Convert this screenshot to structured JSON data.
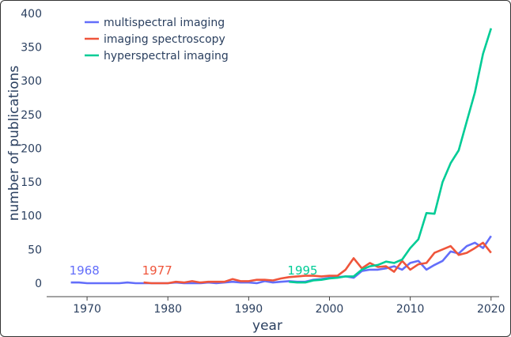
{
  "chart_data": {
    "type": "line",
    "title": "",
    "xlabel": "year",
    "ylabel": "number of publications",
    "xlim": [
      1965,
      2021
    ],
    "ylim": [
      -20,
      400
    ],
    "xticks": [
      1970,
      1980,
      1990,
      2000,
      2010,
      2020
    ],
    "yticks": [
      0,
      50,
      100,
      150,
      200,
      250,
      300,
      350,
      400
    ],
    "grid": false,
    "legend_position": "top-left",
    "series": [
      {
        "name": "multispectral imaging",
        "color": "#636efa",
        "x": [
          1968,
          1969,
          1970,
          1971,
          1972,
          1973,
          1974,
          1975,
          1976,
          1977,
          1978,
          1979,
          1980,
          1981,
          1982,
          1983,
          1984,
          1985,
          1986,
          1987,
          1988,
          1989,
          1990,
          1991,
          1992,
          1993,
          1994,
          1995,
          1996,
          1997,
          1998,
          1999,
          2000,
          2001,
          2002,
          2003,
          2004,
          2005,
          2006,
          2007,
          2008,
          2009,
          2010,
          2011,
          2012,
          2013,
          2014,
          2015,
          2016,
          2017,
          2018,
          2019,
          2020
        ],
        "y": [
          1,
          1,
          0,
          0,
          0,
          0,
          0,
          1,
          0,
          0,
          0,
          0,
          0,
          1,
          0,
          0,
          0,
          1,
          0,
          1,
          2,
          1,
          1,
          0,
          3,
          1,
          2,
          3,
          2,
          2,
          5,
          6,
          8,
          9,
          10,
          8,
          18,
          20,
          20,
          22,
          25,
          20,
          30,
          33,
          20,
          27,
          33,
          47,
          44,
          55,
          60,
          52,
          70
        ]
      },
      {
        "name": "imaging spectroscopy",
        "color": "#ef553b",
        "x": [
          1977,
          1978,
          1979,
          1980,
          1981,
          1982,
          1983,
          1984,
          1985,
          1986,
          1987,
          1988,
          1989,
          1990,
          1991,
          1992,
          1993,
          1994,
          1995,
          1996,
          1997,
          1998,
          1999,
          2000,
          2001,
          2002,
          2003,
          2004,
          2005,
          2006,
          2007,
          2008,
          2009,
          2010,
          2011,
          2012,
          2013,
          2014,
          2015,
          2016,
          2017,
          2018,
          2019,
          2020
        ],
        "y": [
          1,
          0,
          0,
          0,
          2,
          1,
          3,
          1,
          2,
          2,
          2,
          6,
          3,
          3,
          5,
          5,
          4,
          7,
          9,
          10,
          11,
          11,
          10,
          11,
          11,
          20,
          37,
          22,
          30,
          24,
          25,
          17,
          33,
          20,
          28,
          30,
          45,
          50,
          55,
          42,
          45,
          52,
          60,
          45
        ]
      },
      {
        "name": "hyperspectral imaging",
        "color": "#00cc96",
        "x": [
          1995,
          1996,
          1997,
          1998,
          1999,
          2000,
          2001,
          2002,
          2003,
          2004,
          2005,
          2006,
          2007,
          2008,
          2009,
          2010,
          2011,
          2012,
          2013,
          2014,
          2015,
          2016,
          2017,
          2018,
          2019,
          2020
        ],
        "y": [
          2,
          1,
          1,
          4,
          5,
          7,
          8,
          10,
          10,
          20,
          25,
          27,
          32,
          30,
          35,
          52,
          65,
          104,
          103,
          150,
          178,
          197,
          240,
          283,
          340,
          378
        ]
      }
    ],
    "annotations": [
      {
        "text": "1968",
        "x": 1968,
        "y": 20,
        "color": "#636efa"
      },
      {
        "text": "1977",
        "x": 1977,
        "y": 20,
        "color": "#ef553b"
      },
      {
        "text": "1995",
        "x": 1995,
        "y": 20,
        "color": "#00cc96"
      }
    ]
  }
}
